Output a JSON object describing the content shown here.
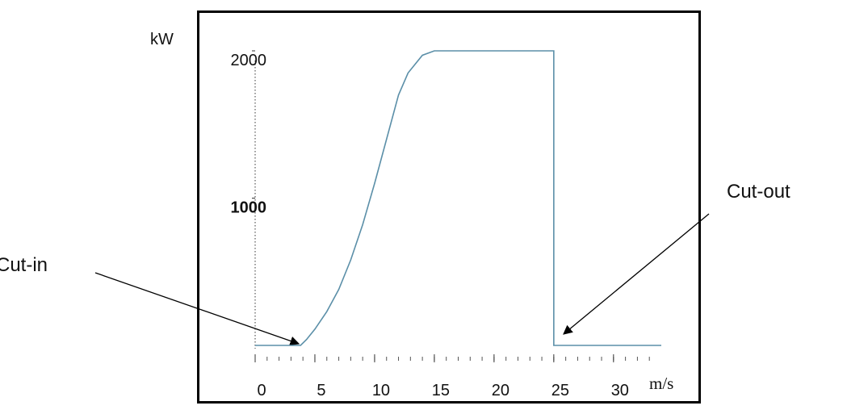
{
  "chart_data": {
    "type": "line",
    "y_label": "kW",
    "x_label": "m/s",
    "x": [
      0,
      3.8,
      4.3,
      5,
      6,
      7,
      8,
      9,
      10,
      11,
      12,
      12.8,
      14,
      15,
      25,
      25,
      34
    ],
    "values": [
      0,
      0,
      40,
      110,
      230,
      380,
      580,
      820,
      1100,
      1400,
      1700,
      1850,
      1970,
      2000,
      2000,
      0,
      0
    ],
    "color": "#5b8fa8",
    "xlim": [
      0,
      34
    ],
    "ylim": [
      0,
      2000
    ],
    "xticks": [
      0,
      5,
      10,
      15,
      20,
      25,
      30
    ],
    "xminorticks": [
      0,
      1,
      2,
      3,
      4,
      5,
      6,
      7,
      8,
      9,
      10,
      11,
      12,
      13,
      14,
      15,
      16,
      17,
      18,
      19,
      20,
      21,
      22,
      23,
      24,
      25,
      26,
      27,
      28,
      29,
      30,
      31,
      32,
      33
    ],
    "yticks": [
      2000,
      1000
    ],
    "annotations": [
      {
        "text": "Cut-in"
      },
      {
        "text": "Cut-out"
      }
    ]
  }
}
